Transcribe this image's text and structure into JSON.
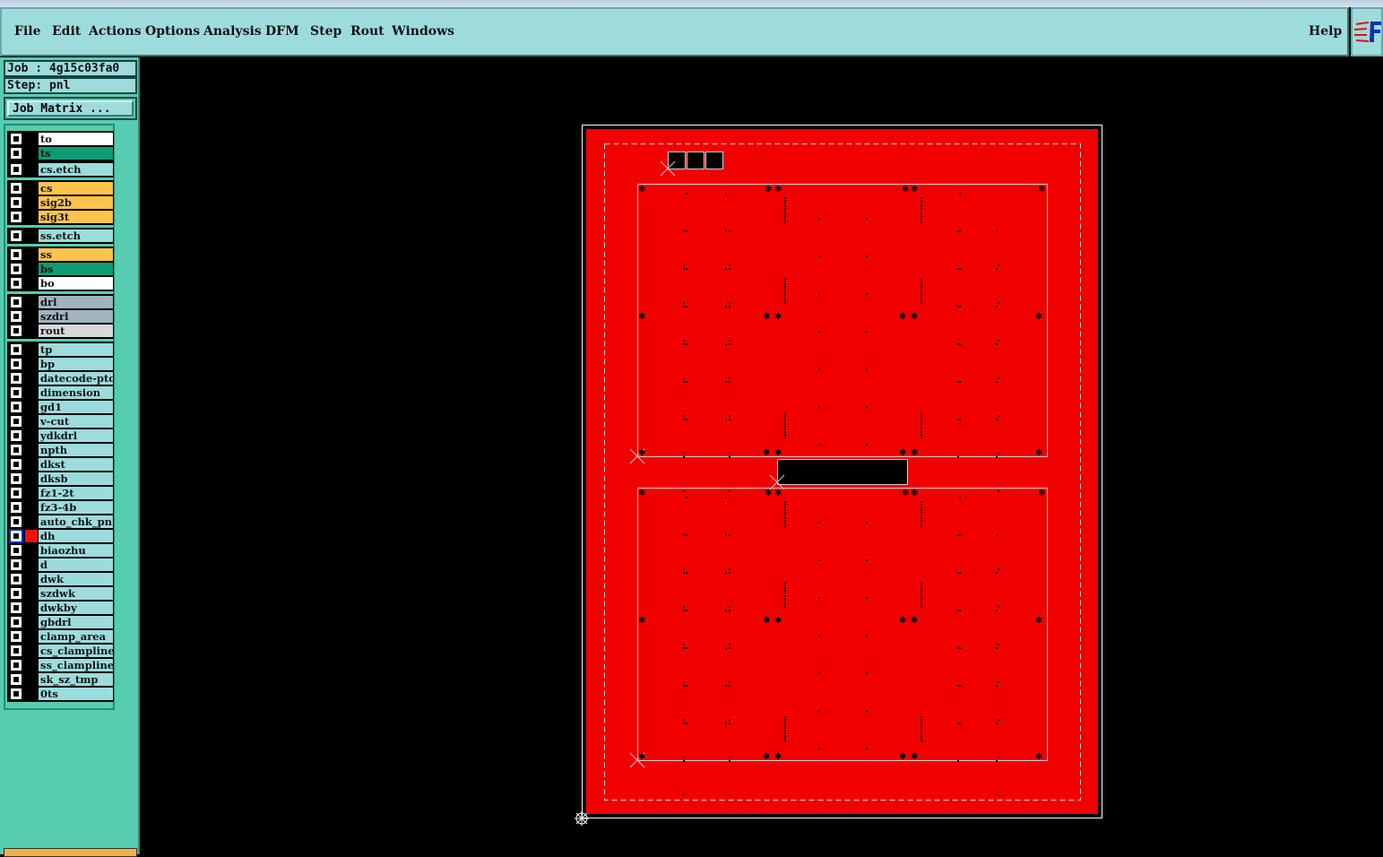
{
  "menu": {
    "items": [
      "File",
      "Edit",
      "Actions",
      "Options",
      "Analysis",
      "DFM",
      "Step",
      "Rout",
      "Windows"
    ],
    "help": "Help"
  },
  "job": {
    "job_label": "Job : 4g15c03fa0",
    "step_label": "Step: pnl",
    "matrix_button": "Job Matrix ..."
  },
  "colors": {
    "menu_bg": "#9edcdc",
    "sidebar_bg": "#56cdb0",
    "board": "#f20000",
    "white": "#ffffff",
    "green": "#0e9a74",
    "orange": "#fcc44c",
    "teal": "#9cdcdc",
    "gray": "#a0b4c0",
    "lightgray": "#d8d8d8",
    "active_swatch": "#f01010"
  },
  "layers": [
    [
      {
        "name": "to",
        "color": "white"
      },
      {
        "name": "ts",
        "color": "green"
      }
    ],
    [
      {
        "name": "cs.etch",
        "color": "teal"
      }
    ],
    [
      {
        "name": "cs",
        "color": "orange"
      },
      {
        "name": "sig2b",
        "color": "orange"
      },
      {
        "name": "sig3t",
        "color": "orange"
      }
    ],
    [
      {
        "name": "ss.etch",
        "color": "teal"
      }
    ],
    [
      {
        "name": "ss",
        "color": "orange"
      },
      {
        "name": "bs",
        "color": "green"
      },
      {
        "name": "bo",
        "color": "white"
      }
    ],
    [
      {
        "name": "drl",
        "color": "gray"
      },
      {
        "name": "szdrl",
        "color": "gray"
      },
      {
        "name": "rout",
        "color": "lightgray"
      }
    ],
    [
      {
        "name": "tp",
        "color": "teal"
      },
      {
        "name": "bp",
        "color": "teal"
      },
      {
        "name": "datecode-ptc",
        "color": "teal"
      },
      {
        "name": "dimension",
        "color": "teal"
      },
      {
        "name": "gd1",
        "color": "teal"
      },
      {
        "name": "v-cut",
        "color": "teal"
      },
      {
        "name": "ydkdrl",
        "color": "teal"
      },
      {
        "name": "npth",
        "color": "teal"
      },
      {
        "name": "dkst",
        "color": "teal"
      },
      {
        "name": "dksb",
        "color": "teal"
      },
      {
        "name": "fz1-2t",
        "color": "teal"
      },
      {
        "name": "fz3-4b",
        "color": "teal"
      },
      {
        "name": "auto_chk_pnl",
        "color": "teal"
      },
      {
        "name": "dh",
        "color": "teal",
        "active": true
      },
      {
        "name": "biaozhu",
        "color": "teal"
      },
      {
        "name": "d",
        "color": "teal"
      },
      {
        "name": "dwk",
        "color": "teal"
      },
      {
        "name": "szdwk",
        "color": "teal"
      },
      {
        "name": "dwkby",
        "color": "teal"
      },
      {
        "name": "gbdrl",
        "color": "teal"
      },
      {
        "name": "clamp_area",
        "color": "teal"
      },
      {
        "name": "cs_clampline",
        "color": "teal"
      },
      {
        "name": "ss_clampline",
        "color": "teal"
      },
      {
        "name": "sk_sz_tmp",
        "color": "teal"
      },
      {
        "name": "0ts",
        "color": "teal"
      }
    ]
  ]
}
